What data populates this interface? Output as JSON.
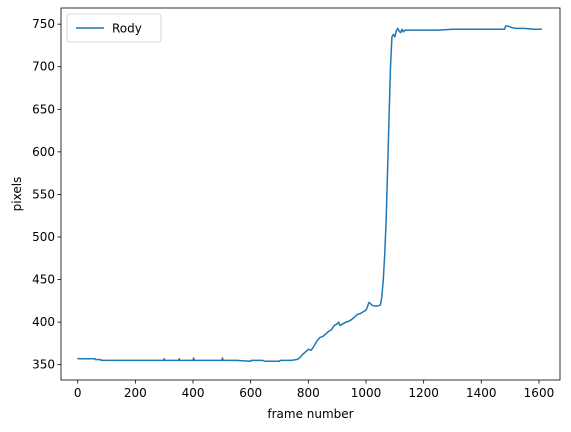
{
  "chart_data": {
    "type": "line",
    "title": "",
    "xlabel": "frame number",
    "ylabel": "pixels",
    "xlim": [
      -58,
      1673
    ],
    "ylim": [
      332,
      769
    ],
    "xticks": [
      0,
      200,
      400,
      600,
      800,
      1000,
      1200,
      1400,
      1600
    ],
    "yticks": [
      350,
      400,
      450,
      500,
      550,
      600,
      650,
      700,
      750
    ],
    "xtick_labels": [
      "0",
      "200",
      "400",
      "600",
      "800",
      "1000",
      "1200",
      "1400",
      "1600"
    ],
    "ytick_labels": [
      "350",
      "400",
      "450",
      "500",
      "550",
      "600",
      "650",
      "700",
      "750"
    ],
    "grid": false,
    "legend_position": "top-left",
    "series": [
      {
        "name": "Rody",
        "color": "#1f77b4",
        "x": [
          0,
          2,
          5,
          60,
          62,
          80,
          82,
          100,
          150,
          200,
          250,
          298,
          300,
          302,
          350,
          352,
          354,
          400,
          402,
          404,
          450,
          500,
          502,
          504,
          550,
          600,
          602,
          640,
          642,
          650,
          700,
          702,
          740,
          760,
          770,
          780,
          790,
          800,
          810,
          820,
          830,
          840,
          850,
          860,
          870,
          880,
          890,
          900,
          905,
          910,
          920,
          930,
          940,
          950,
          960,
          970,
          980,
          990,
          1000,
          1005,
          1010,
          1015,
          1020,
          1030,
          1040,
          1050,
          1055,
          1060,
          1065,
          1070,
          1075,
          1080,
          1085,
          1090,
          1095,
          1100,
          1105,
          1110,
          1115,
          1120,
          1125,
          1130,
          1135,
          1140,
          1150,
          1200,
          1250,
          1300,
          1350,
          1400,
          1450,
          1480,
          1485,
          1500,
          1505,
          1520,
          1550,
          1580,
          1610
        ],
        "y": [
          358,
          357,
          357,
          357,
          356,
          356,
          355,
          355,
          355,
          355,
          355,
          355,
          357,
          355,
          355,
          357,
          355,
          355,
          358,
          355,
          355,
          355,
          358,
          355,
          355,
          354,
          355,
          355,
          355,
          354,
          354,
          355,
          355,
          356,
          358,
          362,
          365,
          368,
          367,
          372,
          378,
          382,
          383,
          386,
          389,
          391,
          396,
          398,
          400,
          396,
          398,
          400,
          401,
          403,
          406,
          409,
          410,
          412,
          414,
          418,
          423,
          422,
          420,
          419,
          419,
          420,
          430,
          450,
          480,
          520,
          580,
          640,
          700,
          735,
          738,
          735,
          742,
          745,
          742,
          740,
          744,
          741,
          743,
          743,
          743,
          743,
          743,
          744,
          744,
          744,
          744,
          744,
          748,
          747,
          746,
          745,
          745,
          744,
          744
        ]
      }
    ]
  }
}
